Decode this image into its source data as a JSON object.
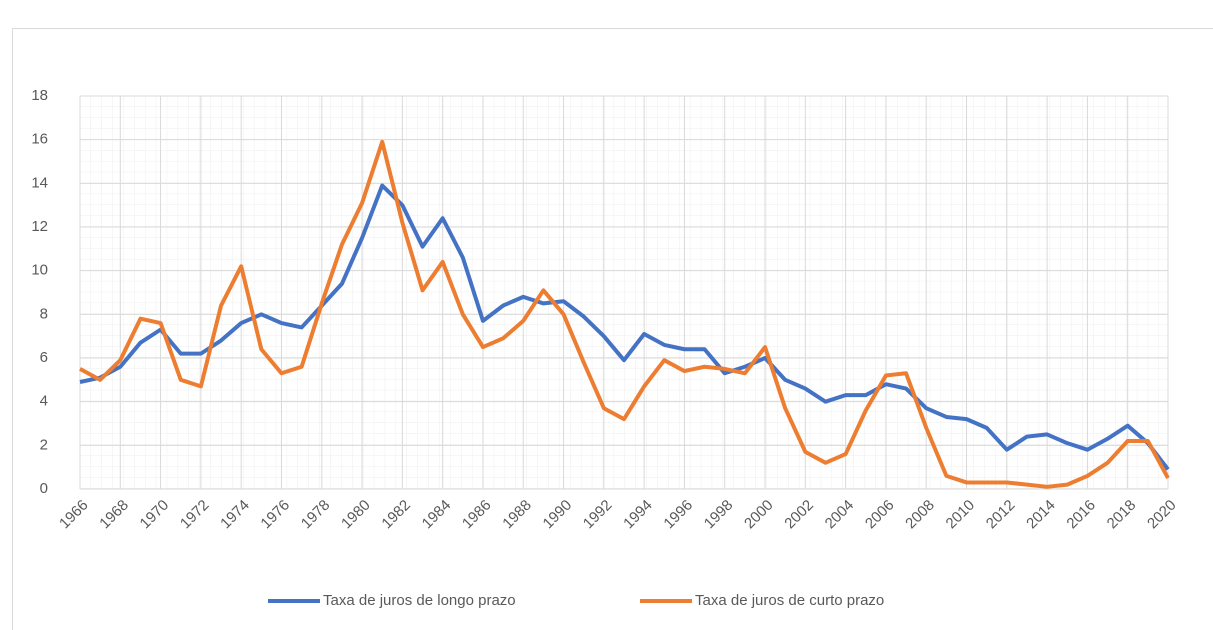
{
  "chart_data": {
    "type": "line",
    "x": [
      1966,
      1967,
      1968,
      1969,
      1970,
      1971,
      1972,
      1973,
      1974,
      1975,
      1976,
      1977,
      1978,
      1979,
      1980,
      1981,
      1982,
      1983,
      1984,
      1985,
      1986,
      1987,
      1988,
      1989,
      1990,
      1991,
      1992,
      1993,
      1994,
      1995,
      1996,
      1997,
      1998,
      1999,
      2000,
      2001,
      2002,
      2003,
      2004,
      2005,
      2006,
      2007,
      2008,
      2009,
      2010,
      2011,
      2012,
      2013,
      2014,
      2015,
      2016,
      2017,
      2018,
      2019,
      2020
    ],
    "series": [
      {
        "name": "Taxa de juros de longo prazo",
        "color": "#4472c4",
        "values": [
          4.9,
          5.1,
          5.6,
          6.7,
          7.3,
          6.2,
          6.2,
          6.8,
          7.6,
          8.0,
          7.6,
          7.4,
          8.4,
          9.4,
          11.5,
          13.9,
          13.0,
          11.1,
          12.4,
          10.6,
          7.7,
          8.4,
          8.8,
          8.5,
          8.6,
          7.9,
          7.0,
          5.9,
          7.1,
          6.6,
          6.4,
          6.4,
          5.3,
          5.6,
          6.0,
          5.0,
          4.6,
          4.0,
          4.3,
          4.3,
          4.8,
          4.6,
          3.7,
          3.3,
          3.2,
          2.8,
          1.8,
          2.4,
          2.5,
          2.1,
          1.8,
          2.3,
          2.9,
          2.1,
          0.9
        ]
      },
      {
        "name": "Taxa de juros de curto prazo",
        "color": "#ed7d31",
        "values": [
          5.5,
          5.0,
          5.9,
          7.8,
          7.6,
          5.0,
          4.7,
          8.4,
          10.2,
          6.4,
          5.3,
          5.6,
          8.5,
          11.2,
          13.1,
          15.9,
          12.2,
          9.1,
          10.4,
          8.0,
          6.5,
          6.9,
          7.7,
          9.1,
          8.0,
          5.8,
          3.7,
          3.2,
          4.7,
          5.9,
          5.4,
          5.6,
          5.5,
          5.3,
          6.5,
          3.7,
          1.7,
          1.2,
          1.6,
          3.6,
          5.2,
          5.3,
          2.8,
          0.6,
          0.3,
          0.3,
          0.3,
          0.2,
          0.1,
          0.2,
          0.6,
          1.2,
          2.2,
          2.2,
          0.5
        ]
      }
    ],
    "xlim": [
      1966,
      2020
    ],
    "xticks": [
      1966,
      1968,
      1970,
      1972,
      1974,
      1976,
      1978,
      1980,
      1982,
      1984,
      1986,
      1988,
      1990,
      1992,
      1994,
      1996,
      1998,
      2000,
      2002,
      2004,
      2006,
      2008,
      2010,
      2012,
      2014,
      2016,
      2018,
      2020
    ],
    "ylim": [
      0,
      18
    ],
    "yticks": [
      0,
      2,
      4,
      6,
      8,
      10,
      12,
      14,
      16,
      18
    ],
    "grid": true,
    "legend": "bottom"
  }
}
